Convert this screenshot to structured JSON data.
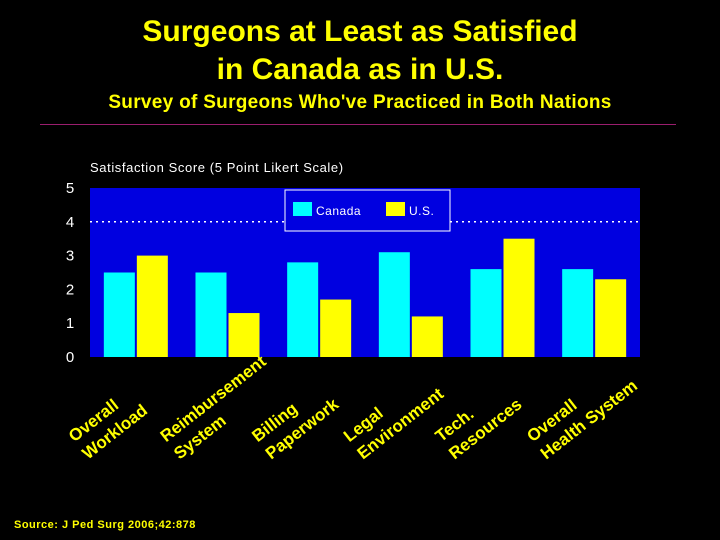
{
  "title_line1": "Surgeons at Least as Satisfied",
  "title_line2": "in Canada as in U.S.",
  "subtitle": "Survey of Surgeons Who've Practiced in Both Nations",
  "source": "Source: J Ped Surg 2006;42:878",
  "colors": {
    "background": "#000000",
    "title": "#FFFF00",
    "plot_area": "#0000E0",
    "canada": "#00FFFF",
    "us": "#FFFF00",
    "gridline": "#FFFFFF"
  },
  "chart_data": {
    "type": "bar",
    "ylabel": "Satisfaction Score (5 Point Likert Scale)",
    "ylim": [
      0,
      5
    ],
    "yticks": [
      0,
      1,
      2,
      3,
      4,
      5
    ],
    "gridlines_at": [
      4
    ],
    "legend_position": "top-center",
    "categories": [
      [
        "Overall",
        "Workload"
      ],
      [
        "Reimbursement",
        "System"
      ],
      [
        "Billing",
        "Paperwork"
      ],
      [
        "Legal",
        "Environment"
      ],
      [
        "Tech.",
        "Resources"
      ],
      [
        "Overall",
        "Health System"
      ]
    ],
    "series": [
      {
        "name": "Canada",
        "color": "#00FFFF",
        "values": [
          2.5,
          2.5,
          2.8,
          3.1,
          2.6,
          2.6
        ]
      },
      {
        "name": "U.S.",
        "color": "#FFFF00",
        "values": [
          3.0,
          1.3,
          1.7,
          1.2,
          3.5,
          2.3
        ]
      }
    ]
  }
}
